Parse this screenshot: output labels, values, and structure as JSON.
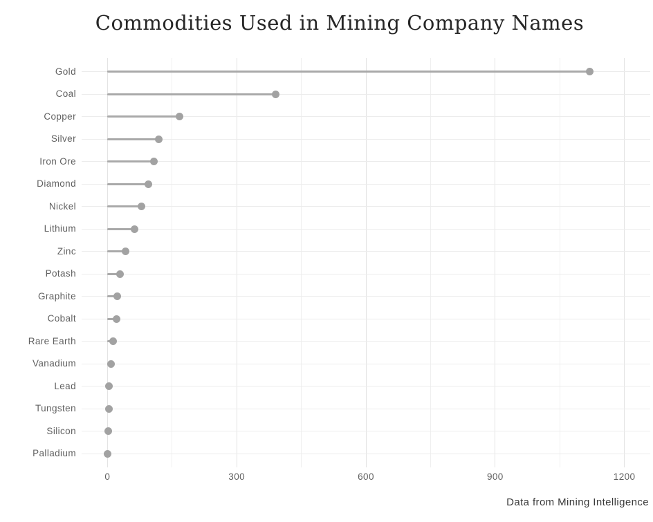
{
  "chart_data": {
    "type": "bar",
    "variant": "horizontal-lollipop",
    "title": "Commodities Used in Mining Company Names",
    "caption": "Data from Mining Intelligence",
    "xlabel": "",
    "ylabel": "",
    "categories": [
      "Gold",
      "Coal",
      "Copper",
      "Silver",
      "Iron Ore",
      "Diamond",
      "Nickel",
      "Lithium",
      "Zinc",
      "Potash",
      "Graphite",
      "Cobalt",
      "Rare Earth",
      "Vanadium",
      "Lead",
      "Tungsten",
      "Silicon",
      "Palladium"
    ],
    "values": [
      1120,
      390,
      167,
      119,
      108,
      95,
      79,
      63,
      42,
      29,
      23,
      21,
      13,
      8,
      4,
      3,
      2,
      1
    ],
    "xlim": [
      0,
      1200
    ],
    "x_major_ticks": [
      0,
      300,
      600,
      900,
      1200
    ],
    "x_minor_gridlines": [
      150,
      450,
      750,
      1050
    ],
    "grid": "on",
    "legend": "none",
    "colors": {
      "stem": "#a9a9a9",
      "dot": "#a2a2a2",
      "grid_major": "#e3e3e3",
      "grid_minor": "#efefef",
      "grid_horizontal": "#ececec",
      "axis_text": "#606060",
      "title_text": "#262626",
      "caption_text": "#3a3a3a",
      "background": "#ffffff"
    }
  }
}
